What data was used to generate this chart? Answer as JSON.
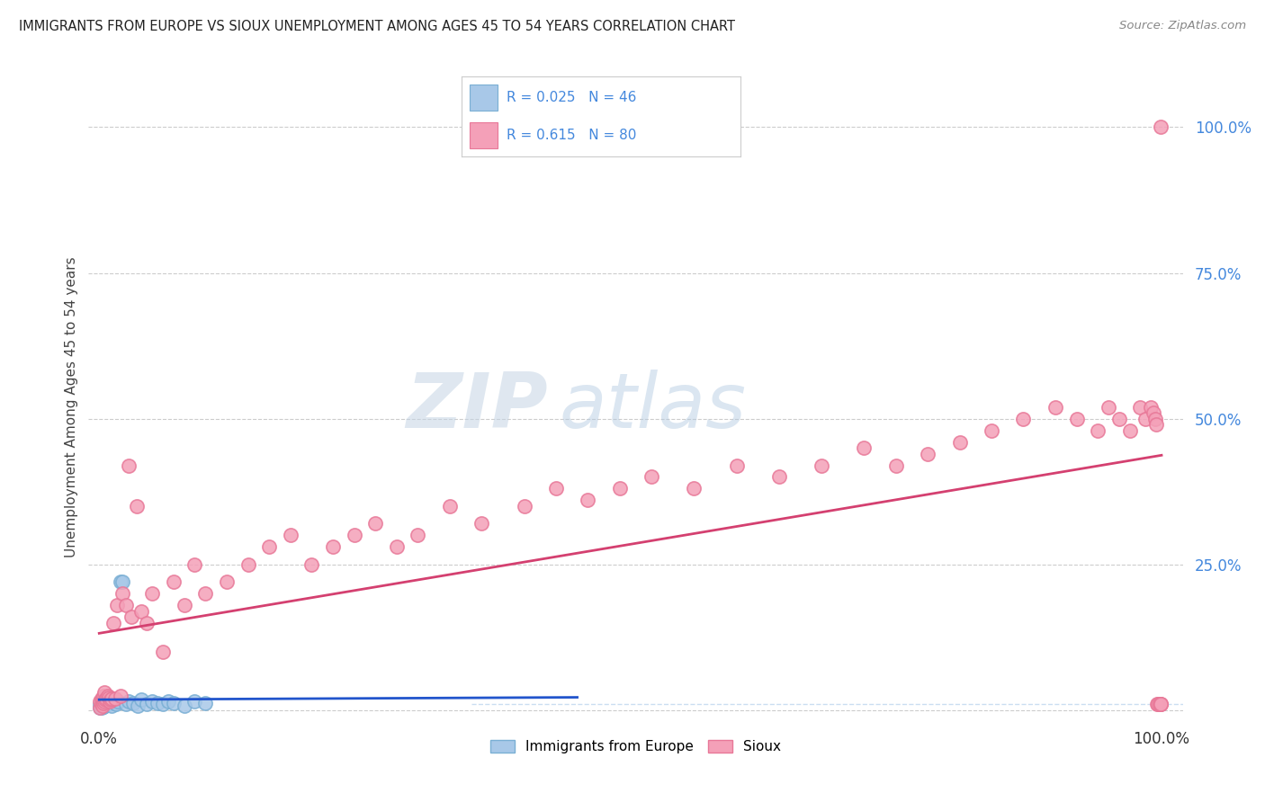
{
  "title": "IMMIGRANTS FROM EUROPE VS SIOUX UNEMPLOYMENT AMONG AGES 45 TO 54 YEARS CORRELATION CHART",
  "source": "Source: ZipAtlas.com",
  "ylabel": "Unemployment Among Ages 45 to 54 years",
  "legend1_label": "Immigrants from Europe",
  "legend2_label": "Sioux",
  "r1": 0.025,
  "n1": 46,
  "r2": 0.615,
  "n2": 80,
  "blue_color": "#a8c8e8",
  "pink_color": "#f4a0b8",
  "blue_edge": "#7aafd4",
  "pink_edge": "#e87898",
  "trend_blue": "#2255cc",
  "trend_pink": "#d44070",
  "grid_color": "#cccccc",
  "tick_color": "#4488dd",
  "watermark_zip": "ZIP",
  "watermark_atlas": "atlas",
  "blue_scatter_x": [
    0.001,
    0.001,
    0.002,
    0.002,
    0.002,
    0.003,
    0.003,
    0.003,
    0.004,
    0.004,
    0.004,
    0.005,
    0.005,
    0.005,
    0.006,
    0.006,
    0.007,
    0.007,
    0.008,
    0.008,
    0.009,
    0.01,
    0.01,
    0.011,
    0.012,
    0.013,
    0.014,
    0.015,
    0.016,
    0.018,
    0.02,
    0.022,
    0.025,
    0.028,
    0.032,
    0.036,
    0.04,
    0.045,
    0.05,
    0.055,
    0.06,
    0.065,
    0.07,
    0.08,
    0.09,
    0.1
  ],
  "blue_scatter_y": [
    0.005,
    0.01,
    0.008,
    0.012,
    0.005,
    0.007,
    0.01,
    0.015,
    0.006,
    0.012,
    0.018,
    0.008,
    0.013,
    0.02,
    0.01,
    0.015,
    0.012,
    0.018,
    0.015,
    0.022,
    0.01,
    0.015,
    0.02,
    0.012,
    0.008,
    0.015,
    0.018,
    0.012,
    0.01,
    0.015,
    0.22,
    0.22,
    0.01,
    0.015,
    0.012,
    0.008,
    0.018,
    0.01,
    0.015,
    0.012,
    0.01,
    0.015,
    0.012,
    0.008,
    0.015,
    0.012
  ],
  "pink_scatter_x": [
    0.001,
    0.001,
    0.002,
    0.002,
    0.003,
    0.003,
    0.004,
    0.004,
    0.005,
    0.005,
    0.006,
    0.007,
    0.008,
    0.009,
    0.01,
    0.011,
    0.012,
    0.013,
    0.015,
    0.017,
    0.02,
    0.022,
    0.025,
    0.028,
    0.03,
    0.035,
    0.04,
    0.045,
    0.05,
    0.06,
    0.07,
    0.08,
    0.09,
    0.1,
    0.12,
    0.14,
    0.16,
    0.18,
    0.2,
    0.22,
    0.24,
    0.26,
    0.28,
    0.3,
    0.33,
    0.36,
    0.4,
    0.43,
    0.46,
    0.49,
    0.52,
    0.56,
    0.6,
    0.64,
    0.68,
    0.72,
    0.75,
    0.78,
    0.81,
    0.84,
    0.87,
    0.9,
    0.92,
    0.94,
    0.95,
    0.96,
    0.97,
    0.98,
    0.985,
    0.99,
    0.992,
    0.994,
    0.995,
    0.996,
    0.997,
    0.998,
    0.999,
    0.999,
    0.999,
    0.999
  ],
  "pink_scatter_y": [
    0.005,
    0.015,
    0.01,
    0.02,
    0.008,
    0.018,
    0.012,
    0.025,
    0.015,
    0.03,
    0.018,
    0.02,
    0.025,
    0.022,
    0.015,
    0.018,
    0.02,
    0.15,
    0.02,
    0.18,
    0.025,
    0.2,
    0.18,
    0.42,
    0.16,
    0.35,
    0.17,
    0.15,
    0.2,
    0.1,
    0.22,
    0.18,
    0.25,
    0.2,
    0.22,
    0.25,
    0.28,
    0.3,
    0.25,
    0.28,
    0.3,
    0.32,
    0.28,
    0.3,
    0.35,
    0.32,
    0.35,
    0.38,
    0.36,
    0.38,
    0.4,
    0.38,
    0.42,
    0.4,
    0.42,
    0.45,
    0.42,
    0.44,
    0.46,
    0.48,
    0.5,
    0.52,
    0.5,
    0.48,
    0.52,
    0.5,
    0.48,
    0.52,
    0.5,
    0.52,
    0.51,
    0.5,
    0.49,
    0.01,
    0.01,
    0.01,
    0.01,
    0.01,
    0.01,
    1.0
  ]
}
